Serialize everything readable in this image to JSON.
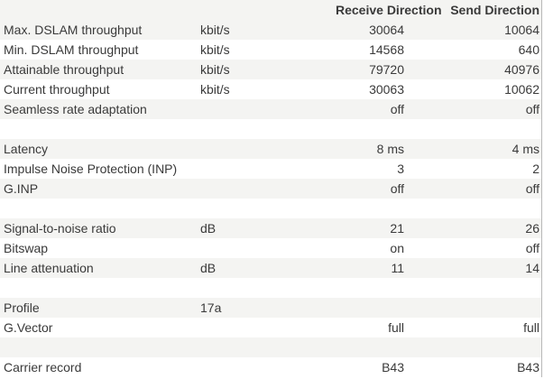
{
  "header": {
    "label": "",
    "unit": "",
    "receive": "Receive Direction",
    "send": "Send Direction"
  },
  "rows": [
    {
      "label": "Max. DSLAM throughput",
      "unit": "kbit/s",
      "receive": "30064",
      "send": "10064"
    },
    {
      "label": "Min. DSLAM throughput",
      "unit": "kbit/s",
      "receive": "14568",
      "send": "640"
    },
    {
      "label": "Attainable throughput",
      "unit": "kbit/s",
      "receive": "79720",
      "send": "40976"
    },
    {
      "label": "Current throughput",
      "unit": "kbit/s",
      "receive": "30063",
      "send": "10062"
    },
    {
      "label": "Seamless rate adaptation",
      "unit": "",
      "receive": "off",
      "send": "off"
    },
    {
      "label": "",
      "unit": "",
      "receive": "",
      "send": ""
    },
    {
      "label": "Latency",
      "unit": "",
      "receive": "8 ms",
      "send": "4 ms"
    },
    {
      "label": "Impulse Noise Protection (INP)",
      "unit": "",
      "receive": "3",
      "send": "2"
    },
    {
      "label": "G.INP",
      "unit": "",
      "receive": "off",
      "send": "off"
    },
    {
      "label": "",
      "unit": "",
      "receive": "",
      "send": ""
    },
    {
      "label": "Signal-to-noise ratio",
      "unit": "dB",
      "receive": "21",
      "send": "26"
    },
    {
      "label": "Bitswap",
      "unit": "",
      "receive": "on",
      "send": "off"
    },
    {
      "label": "Line attenuation",
      "unit": "dB",
      "receive": "11",
      "send": "14"
    },
    {
      "label": "",
      "unit": "",
      "receive": "",
      "send": ""
    },
    {
      "label": "Profile",
      "unit": "17a",
      "receive": "",
      "send": ""
    },
    {
      "label": "G.Vector",
      "unit": "",
      "receive": "full",
      "send": "full"
    },
    {
      "label": "",
      "unit": "",
      "receive": "",
      "send": ""
    },
    {
      "label": "Carrier record",
      "unit": "",
      "receive": "B43",
      "send": "B43"
    }
  ]
}
